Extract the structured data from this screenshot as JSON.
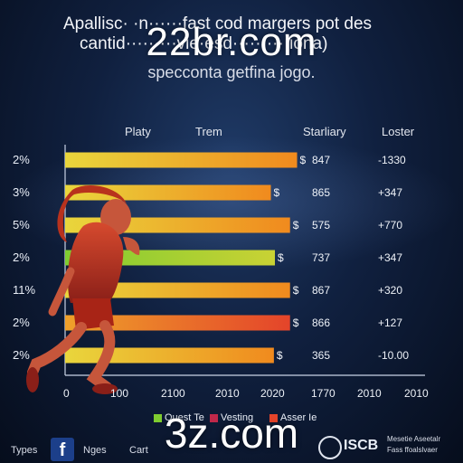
{
  "header": {
    "title_line1": "Apallisc· ·n······fast cod margers pot des",
    "title_line2": "cantid·········vie·esd··········iona)",
    "subtitle": "specconta getfina jogo.",
    "watermark_top": "22br.com",
    "watermark_bottom": "3z.com"
  },
  "columns": {
    "c1": "Platy",
    "c2": "Trem",
    "c3": "Starliary",
    "c4": "Loster"
  },
  "colors": {
    "bar_orange": "#f08a1e",
    "bar_yellow": "#e8d43a",
    "bar_green": "#7fcc30",
    "bar_red": "#e4442a",
    "axis": "#c9d3e6"
  },
  "chart_data": {
    "type": "bar",
    "orientation": "horizontal",
    "categories": [
      "2%",
      "3%",
      "5%",
      "2%",
      "11%",
      "2%",
      "2%"
    ],
    "values": [
      2300,
      2040,
      2230,
      2080,
      2230,
      2230,
      2070
    ],
    "value_labels": [
      "$",
      "$",
      "$",
      "$",
      "$",
      "$",
      "$"
    ],
    "bar_styles": [
      "yellow-orange",
      "yellow-orange",
      "yellow-orange",
      "green-yellow",
      "yellow-orange",
      "orange-red",
      "yellow-orange"
    ],
    "column3_values": [
      "847",
      "865",
      "575",
      "737",
      "867",
      "866",
      "365"
    ],
    "column4_values": [
      "-1330",
      "+347",
      "+770",
      "+347",
      "+320",
      "+127",
      "-10.00"
    ],
    "x_ticks": [
      "0",
      "100",
      "2100",
      "2010",
      "2020",
      "1770",
      "2010",
      "2010"
    ],
    "xlim": [
      0,
      2600
    ],
    "grid": false
  },
  "legend": {
    "items": [
      {
        "label": "Quest Te",
        "color": "#7fcc30"
      },
      {
        "label": "Vesting",
        "color": "#c0284a"
      },
      {
        "label": "Asser Ie",
        "color": "#e4442a"
      }
    ]
  },
  "footer": {
    "left1": "Types",
    "left2": "Nges",
    "left3": "Cart",
    "fb_glyph": "f",
    "iscb": "ISCB",
    "right_line1": "Mesetie Aseetalr",
    "right_line2": "Fass ffoalslvaer"
  }
}
